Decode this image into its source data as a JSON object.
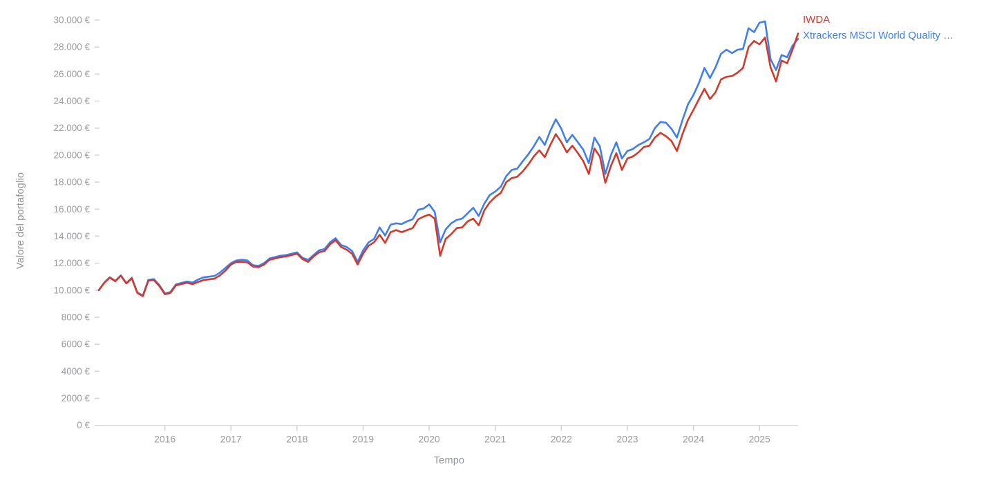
{
  "page": {
    "background": "#ffffff"
  },
  "legend": {
    "items": [
      {
        "label": "IWDA",
        "color": "#d3392b"
      },
      {
        "label": "Xtrackers MSCI World Quality …",
        "color": "#3e7ef0"
      }
    ]
  },
  "chart_data": {
    "type": "line",
    "title": "",
    "xlabel": "Tempo",
    "ylabel": "Valore del portafoglio",
    "ylim": [
      0,
      30000
    ],
    "grid": false,
    "legend_position": "top-right",
    "axis_color": "#d8d8d8",
    "tick_color": "#d2d2d2",
    "tick_label_color": "#9a9a9f",
    "x": [
      "2015-01",
      "2015-02",
      "2015-03",
      "2015-04",
      "2015-05",
      "2015-06",
      "2015-07",
      "2015-08",
      "2015-09",
      "2015-10",
      "2015-11",
      "2015-12",
      "2016-01",
      "2016-02",
      "2016-03",
      "2016-04",
      "2016-05",
      "2016-06",
      "2016-07",
      "2016-08",
      "2016-09",
      "2016-10",
      "2016-11",
      "2016-12",
      "2017-01",
      "2017-02",
      "2017-03",
      "2017-04",
      "2017-05",
      "2017-06",
      "2017-07",
      "2017-08",
      "2017-09",
      "2017-10",
      "2017-11",
      "2017-12",
      "2018-01",
      "2018-02",
      "2018-03",
      "2018-04",
      "2018-05",
      "2018-06",
      "2018-07",
      "2018-08",
      "2018-09",
      "2018-10",
      "2018-11",
      "2018-12",
      "2019-01",
      "2019-02",
      "2019-03",
      "2019-04",
      "2019-05",
      "2019-06",
      "2019-07",
      "2019-08",
      "2019-09",
      "2019-10",
      "2019-11",
      "2019-12",
      "2020-01",
      "2020-02",
      "2020-03",
      "2020-04",
      "2020-05",
      "2020-06",
      "2020-07",
      "2020-08",
      "2020-09",
      "2020-10",
      "2020-11",
      "2020-12",
      "2021-01",
      "2021-02",
      "2021-03",
      "2021-04",
      "2021-05",
      "2021-06",
      "2021-07",
      "2021-08",
      "2021-09",
      "2021-10",
      "2021-11",
      "2021-12",
      "2022-01",
      "2022-02",
      "2022-03",
      "2022-04",
      "2022-05",
      "2022-06",
      "2022-07",
      "2022-08",
      "2022-09",
      "2022-10",
      "2022-11",
      "2022-12",
      "2023-01",
      "2023-02",
      "2023-03",
      "2023-04",
      "2023-05",
      "2023-06",
      "2023-07",
      "2023-08",
      "2023-09",
      "2023-10",
      "2023-11",
      "2023-12",
      "2024-01",
      "2024-02",
      "2024-03",
      "2024-04",
      "2024-05",
      "2024-06",
      "2024-07",
      "2024-08",
      "2024-09",
      "2024-10",
      "2024-11",
      "2024-12",
      "2025-01",
      "2025-02",
      "2025-03",
      "2025-04",
      "2025-05",
      "2025-06",
      "2025-07",
      "2025-08"
    ],
    "x_tick_years": [
      "2016",
      "2017",
      "2018",
      "2019",
      "2020",
      "2021",
      "2022",
      "2023",
      "2024",
      "2025"
    ],
    "y_ticks": [
      {
        "value": 0,
        "label": "0 €"
      },
      {
        "value": 2000,
        "label": "2000 €"
      },
      {
        "value": 4000,
        "label": "4000 €"
      },
      {
        "value": 6000,
        "label": "6000 €"
      },
      {
        "value": 8000,
        "label": "8000 €"
      },
      {
        "value": 10000,
        "label": "10.000 €"
      },
      {
        "value": 12000,
        "label": "12.000 €"
      },
      {
        "value": 14000,
        "label": "14.000 €"
      },
      {
        "value": 16000,
        "label": "16.000 €"
      },
      {
        "value": 18000,
        "label": "18.000 €"
      },
      {
        "value": 20000,
        "label": "20.000 €"
      },
      {
        "value": 22000,
        "label": "22.000 €"
      },
      {
        "value": 24000,
        "label": "24.000 €"
      },
      {
        "value": 26000,
        "label": "26.000 €"
      },
      {
        "value": 28000,
        "label": "28.000 €"
      },
      {
        "value": 30000,
        "label": "30.000 €"
      }
    ],
    "series": [
      {
        "name": "IWDA",
        "color": "#d3392b",
        "values": [
          10000,
          10550,
          10930,
          10660,
          11070,
          10500,
          10870,
          9790,
          9560,
          10700,
          10750,
          10300,
          9700,
          9800,
          10350,
          10450,
          10550,
          10450,
          10600,
          10750,
          10800,
          10850,
          11100,
          11450,
          11900,
          12100,
          12100,
          12050,
          11750,
          11700,
          11900,
          12250,
          12350,
          12450,
          12500,
          12600,
          12700,
          12300,
          12100,
          12500,
          12800,
          12900,
          13400,
          13700,
          13200,
          13000,
          12700,
          11900,
          12700,
          13300,
          13550,
          14100,
          13500,
          14300,
          14450,
          14300,
          14450,
          14600,
          15250,
          15450,
          15600,
          15300,
          12550,
          13800,
          14150,
          14600,
          14650,
          15100,
          15300,
          14800,
          15900,
          16500,
          16900,
          17200,
          18000,
          18300,
          18400,
          18800,
          19300,
          19900,
          20350,
          19850,
          20750,
          21550,
          20950,
          20200,
          20700,
          20150,
          19550,
          18600,
          20500,
          19900,
          17950,
          19200,
          20150,
          18900,
          19750,
          19900,
          20200,
          20600,
          20700,
          21300,
          21650,
          21400,
          21050,
          20300,
          21550,
          22600,
          23350,
          24150,
          24900,
          24150,
          24650,
          25600,
          25800,
          25850,
          26100,
          26450,
          28000,
          28450,
          28200,
          28700,
          26500,
          25450,
          27000,
          26800,
          27800,
          29000
        ]
      },
      {
        "name": "Xtrackers MSCI World Quality …",
        "color": "#3e7ef0",
        "values": [
          10000,
          10570,
          10960,
          10690,
          11100,
          10530,
          10920,
          9830,
          9600,
          10760,
          10820,
          10380,
          9760,
          9860,
          10430,
          10540,
          10650,
          10560,
          10780,
          10950,
          11000,
          11050,
          11300,
          11650,
          12000,
          12200,
          12250,
          12200,
          11850,
          11800,
          12000,
          12350,
          12450,
          12550,
          12600,
          12700,
          12800,
          12400,
          12250,
          12600,
          12950,
          13050,
          13550,
          13850,
          13350,
          13200,
          12900,
          12100,
          12950,
          13550,
          13800,
          14650,
          14050,
          14850,
          14950,
          14900,
          15100,
          15250,
          15950,
          16050,
          16350,
          15800,
          13550,
          14500,
          14950,
          15200,
          15300,
          15700,
          16100,
          15500,
          16400,
          17050,
          17300,
          17650,
          18450,
          18900,
          19000,
          19550,
          20050,
          20650,
          21350,
          20750,
          21800,
          22650,
          21950,
          20950,
          21500,
          20950,
          20400,
          19400,
          21300,
          20650,
          18600,
          20000,
          20950,
          19750,
          20300,
          20450,
          20750,
          20950,
          21200,
          22000,
          22450,
          22400,
          21950,
          21300,
          22600,
          23750,
          24450,
          25350,
          26450,
          25700,
          26500,
          27500,
          27800,
          27550,
          27800,
          27850,
          29400,
          29100,
          29800,
          29900,
          27100,
          26300,
          27400,
          27250,
          28100,
          28600
        ]
      }
    ]
  }
}
